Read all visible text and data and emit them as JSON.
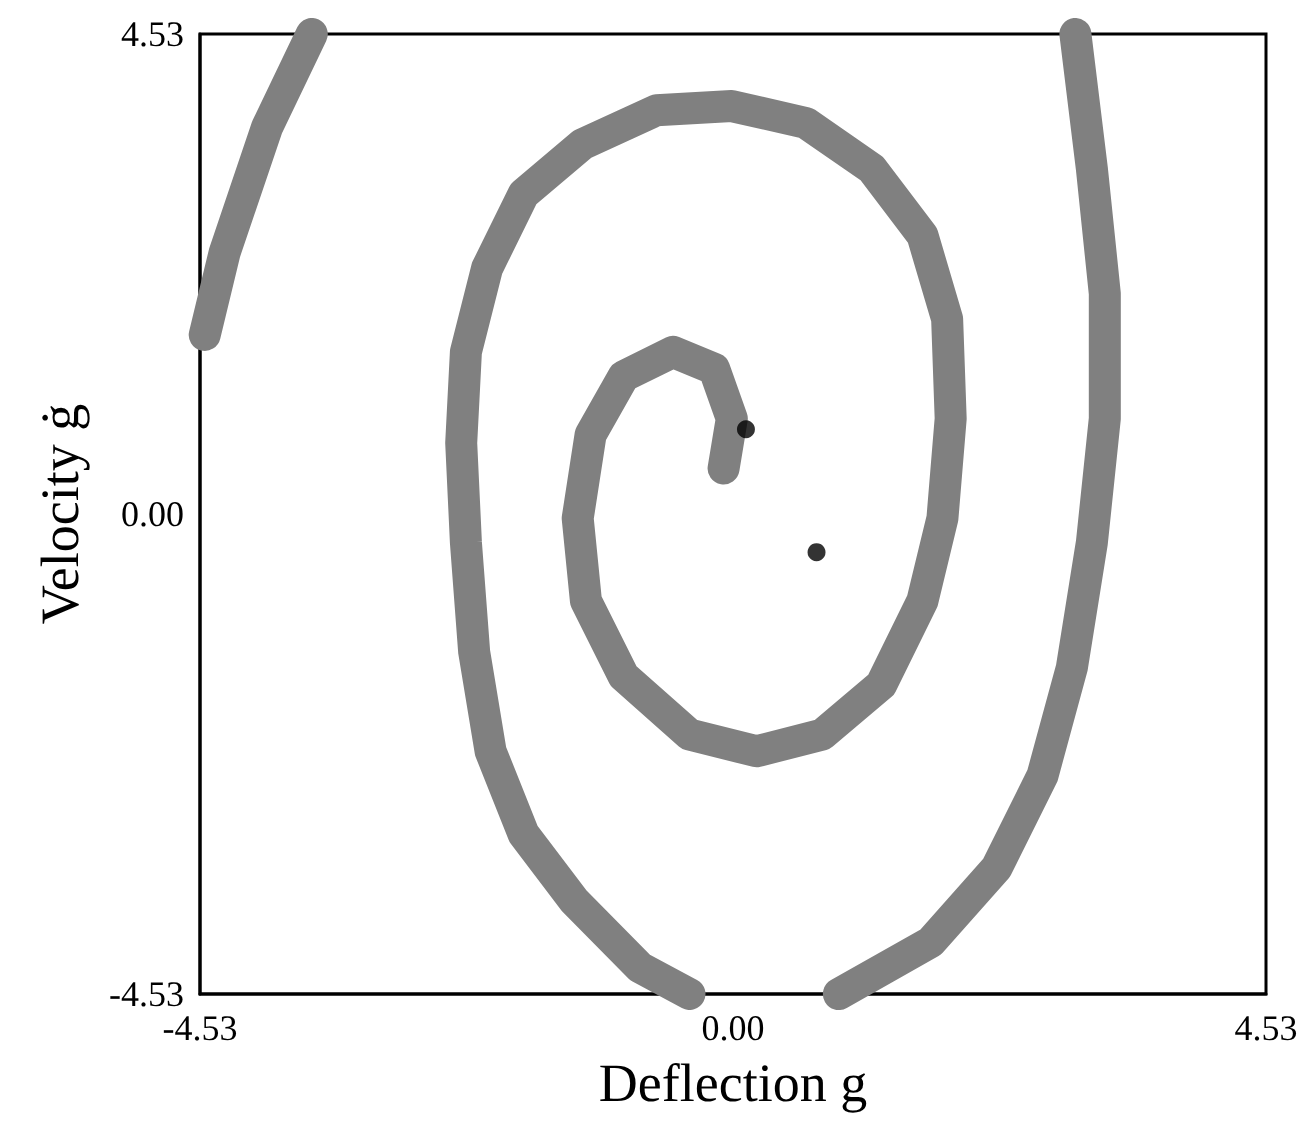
{
  "chart_data": {
    "type": "line",
    "xlabel": "Deflection g",
    "ylabel": "Velocity ġ",
    "xlim": [
      -4.53,
      4.53
    ],
    "ylim": [
      -4.53,
      4.53
    ],
    "xticks": [
      -4.53,
      {
        "value": 0,
        "label": "0.00"
      },
      4.53
    ],
    "yticks": [
      -4.53,
      {
        "value": 0,
        "label": "0.00"
      },
      4.53
    ],
    "grid": false,
    "series": [
      {
        "color": "#808080",
        "x": [
          -0.08,
          -0.01,
          -0.16,
          -0.51,
          -0.93,
          -1.21,
          -1.32,
          -1.25,
          -0.93,
          -0.37,
          0.2,
          0.76,
          1.26,
          1.61,
          1.78,
          1.85,
          1.82,
          1.61,
          1.18,
          0.62,
          -0.01,
          -0.65,
          -1.28,
          -1.78,
          -2.09,
          -2.27,
          -2.31,
          -2.27,
          -2.2,
          -2.06,
          -1.78,
          -1.35,
          -0.79,
          -0.37
        ],
        "values": [
          0.43,
          0.9,
          1.37,
          1.53,
          1.3,
          0.75,
          -0.04,
          -0.82,
          -1.53,
          -2.08,
          -2.24,
          -2.08,
          -1.61,
          -0.82,
          -0.04,
          0.9,
          1.84,
          2.63,
          3.26,
          3.69,
          3.85,
          3.81,
          3.49,
          3.02,
          2.32,
          1.53,
          0.67,
          -0.27,
          -1.3,
          -2.24,
          -3.02,
          -3.65,
          -4.28,
          -4.53
        ]
      },
      {
        "color": "#808080",
        "x": [
          0.9,
          1.68,
          2.24,
          2.63,
          2.88,
          3.05,
          3.16,
          3.16,
          3.05,
          2.91
        ],
        "values": [
          -4.53,
          -4.04,
          -3.34,
          -2.47,
          -1.45,
          -0.27,
          0.9,
          2.08,
          3.26,
          4.53
        ]
      },
      {
        "color": "#808080",
        "x": [
          -3.58,
          -3.96,
          -4.32,
          -4.49
        ],
        "values": [
          4.53,
          3.65,
          2.47,
          1.69
        ]
      },
      {
        "type": "scatter",
        "color": "#000000",
        "x": [
          0.11,
          0.71
        ],
        "values": [
          0.8,
          -0.36
        ]
      }
    ]
  }
}
